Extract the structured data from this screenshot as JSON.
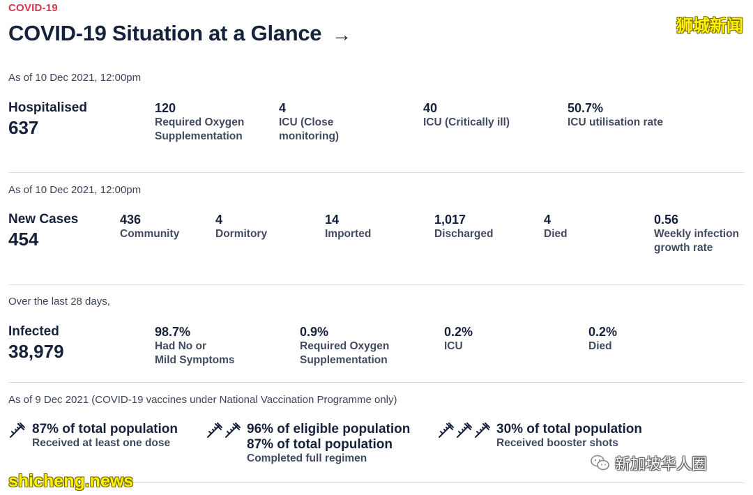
{
  "header": {
    "tag": "COVID-19",
    "title": "COVID-19 Situation at a Glance",
    "arrow": "→",
    "watermark_top": "狮城新闻"
  },
  "hospitalised": {
    "asof": "As of 10 Dec 2021, 12:00pm",
    "label": "Hospitalised",
    "value": "637",
    "stats": [
      {
        "value": "120",
        "label_lines": [
          "Required Oxygen",
          "Supplementation"
        ]
      },
      {
        "value": "4",
        "label_lines": [
          "ICU (Close",
          "monitoring)"
        ]
      },
      {
        "value": "40",
        "label_lines": [
          "ICU (Critically ill)"
        ]
      },
      {
        "value": "50.7%",
        "label_lines": [
          "ICU utilisation rate"
        ]
      }
    ]
  },
  "cases": {
    "asof": "As of 10 Dec 2021, 12:00pm",
    "label": "New Cases",
    "value": "454",
    "stats": [
      {
        "value": "436",
        "label_lines": [
          "Community"
        ]
      },
      {
        "value": "4",
        "label_lines": [
          "Dormitory"
        ]
      },
      {
        "value": "14",
        "label_lines": [
          "Imported"
        ]
      },
      {
        "value": "1,017",
        "label_lines": [
          "Discharged"
        ]
      },
      {
        "value": "4",
        "label_lines": [
          "Died"
        ]
      },
      {
        "value": "0.56",
        "label_lines": [
          "Weekly infection",
          "growth rate"
        ]
      }
    ]
  },
  "infected": {
    "asof": "Over the last 28 days,",
    "label": "Infected",
    "value": "38,979",
    "stats": [
      {
        "value": "98.7%",
        "label_lines": [
          "Had No or",
          "Mild Symptoms"
        ]
      },
      {
        "value": "0.9%",
        "label_lines": [
          "Required Oxygen",
          "Supplementation"
        ]
      },
      {
        "value": "0.2%",
        "label_lines": [
          "ICU"
        ]
      },
      {
        "value": "0.2%",
        "label_lines": [
          "Died"
        ]
      }
    ]
  },
  "vaccination": {
    "asof": "As of 9 Dec 2021 (COVID-19 vaccines under National Vaccination Programme only)",
    "items": [
      {
        "icon_count": 1,
        "lines": [
          "87% of total population"
        ],
        "sub": "Received at least one dose"
      },
      {
        "icon_count": 2,
        "lines": [
          "96% of eligible population",
          "87% of total population"
        ],
        "sub": "Completed full regimen"
      },
      {
        "icon_count": 3,
        "lines": [
          "30% of total population"
        ],
        "sub": "Received booster shots"
      }
    ]
  },
  "watermarks": {
    "bottom_left": "shicheng.news",
    "bottom_right": "新加坡华人圈"
  },
  "colors": {
    "accent": "#d6364a",
    "text": "#16223b",
    "divider": "#dcdfe5"
  }
}
